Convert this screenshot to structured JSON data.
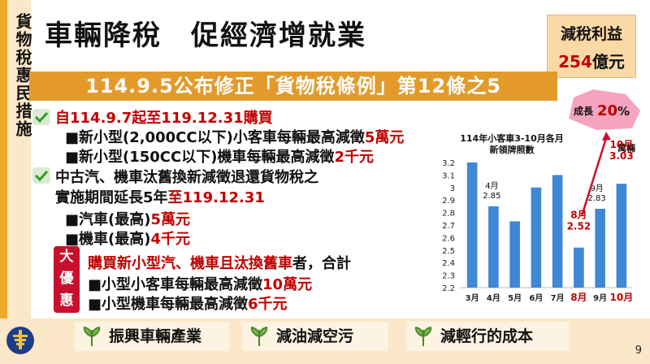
{
  "side_label": "貨物稅惠民措施",
  "title": "車輛降稅　促經濟增就業",
  "benefit": {
    "label": "減稅利益",
    "value": "254",
    "unit": "億元"
  },
  "banner": "114.9.5公布修正「貨物稅條例」第12條之5",
  "section1": {
    "heading": "自114.9.7起至119.12.31購買",
    "line1_prefix": "■新小型(2,000CC以下)小客車每輛最高減徵",
    "line1_highlight": "5萬元",
    "line2_prefix": "■新小型(150CC以下)機車每輛最高減徵",
    "line2_highlight": "2千元"
  },
  "section2": {
    "heading": "中古汽、機車汰舊換新減徵退還貨物稅之",
    "line1_prefix": "實施期間延長5年",
    "line1_highlight": "至119.12.31",
    "line2_prefix": "■汽車(最高)",
    "line2_highlight": "5萬元",
    "line3_prefix": "■機車(最高)",
    "line3_highlight": "4千元"
  },
  "great_deal": {
    "badge": [
      "大",
      "優",
      "惠"
    ],
    "line1_highlight": "購買新小型汽、機車且汰換舊車",
    "line1_suffix": "者，合計",
    "line2_prefix": "■小型小客車每輛最高減徵",
    "line2_highlight": "10萬元",
    "line3_prefix": "■小型機車每輛最高減徵",
    "line3_highlight": "6千元"
  },
  "tags": [
    "振興車輛產業",
    "減油減空污",
    "減輕行的成本"
  ],
  "page_number": "9",
  "colors": {
    "accent_orange": "#e39a2a",
    "red": "#c00000",
    "bar_blue": "#3f88d3",
    "badge_red": "#c8102e"
  },
  "growth_label": {
    "prefix": "成長",
    "value": "20",
    "suffix": "%"
  },
  "chart_data": {
    "type": "bar",
    "title": "114年小客車3-10月各月新領牌照數",
    "title_lines": [
      "114年小客車3-10月各月",
      "新領牌照數"
    ],
    "unit": "萬輛",
    "categories": [
      "3月",
      "4月",
      "5月",
      "6月",
      "7月",
      "8月",
      "9月",
      "10月"
    ],
    "values": [
      3.2,
      2.85,
      2.73,
      3.0,
      3.1,
      2.52,
      2.83,
      3.03
    ],
    "ylim": [
      2.2,
      3.2
    ],
    "yticks": [
      "3.2",
      "3.1",
      "3",
      "2.9",
      "2.8",
      "2.7",
      "2.6",
      "2.5",
      "2.4",
      "2.3",
      "2.2"
    ],
    "labels": [
      {
        "category": "4月",
        "lines": [
          "4月",
          "2.85"
        ],
        "highlight": false
      },
      {
        "category": "8月",
        "lines": [
          "8月",
          "2.52"
        ],
        "highlight": true
      },
      {
        "category": "9月",
        "lines": [
          "9月",
          "2.83"
        ],
        "highlight": false
      },
      {
        "category": "10月",
        "lines": [
          "10月",
          "3.03"
        ],
        "highlight": true
      }
    ],
    "highlight_categories": [
      "8月",
      "10月"
    ]
  }
}
